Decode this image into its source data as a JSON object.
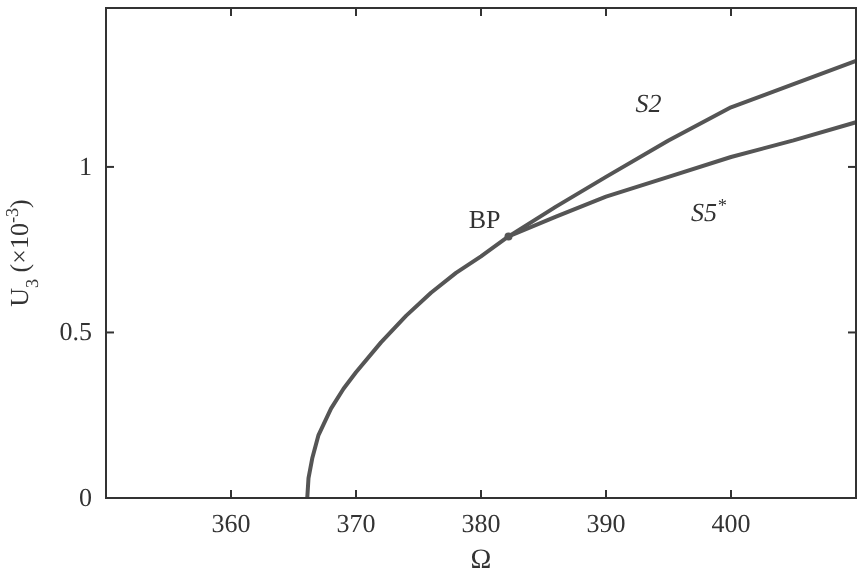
{
  "chart_data": {
    "type": "line",
    "xlabel": "Ω",
    "ylabel": "U$_{3}$ (×10$^{-3}$)",
    "xlim": [
      350,
      410
    ],
    "ylim": [
      0,
      1.48
    ],
    "xticks": [
      360,
      370,
      380,
      390,
      400
    ],
    "yticks": [
      0,
      0.5,
      1
    ],
    "grid": false,
    "line_style": "solid",
    "series": [
      {
        "color": "#555555",
        "x": [
          366.1,
          366.2,
          366.5,
          367,
          368,
          369,
          370,
          372,
          374,
          376,
          378,
          380,
          382.2
        ],
        "values": [
          0,
          0.06,
          0.12,
          0.19,
          0.27,
          0.33,
          0.38,
          0.47,
          0.55,
          0.62,
          0.68,
          0.73,
          0.79
        ]
      },
      {
        "name": "S2",
        "color": "#555555",
        "x": [
          382.2,
          386,
          390,
          395,
          400,
          405,
          410
        ],
        "values": [
          0.79,
          0.88,
          0.97,
          1.08,
          1.18,
          1.25,
          1.32
        ]
      },
      {
        "name": "S5$^{*}$",
        "color": "#555555",
        "x": [
          382.2,
          386,
          390,
          395,
          400,
          405,
          410
        ],
        "values": [
          0.79,
          0.85,
          0.91,
          0.97,
          1.03,
          1.08,
          1.135
        ]
      }
    ],
    "annotations": [
      {
        "text": "BP",
        "x": 382.2,
        "y": 0.79
      }
    ]
  }
}
